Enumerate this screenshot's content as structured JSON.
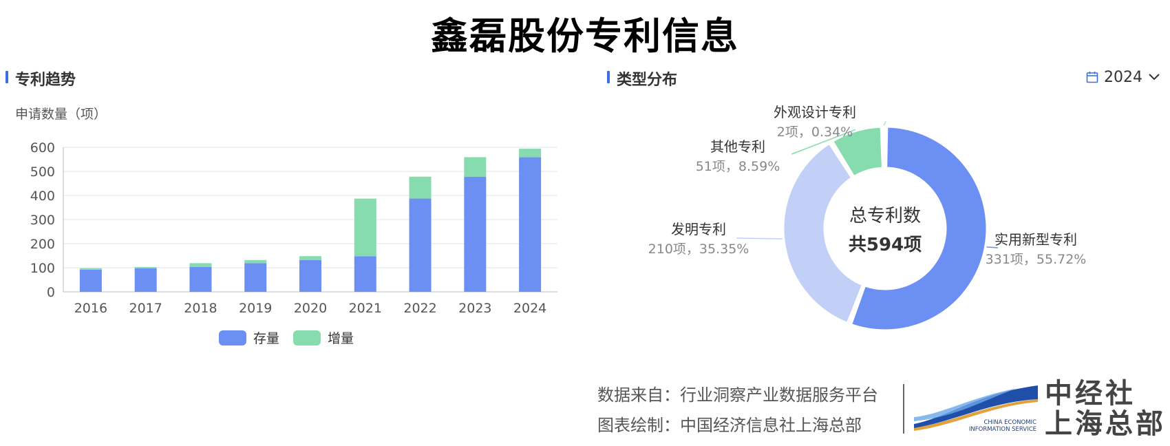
{
  "title": "鑫磊股份专利信息",
  "left_section": {
    "title": "专利趋势"
  },
  "right_section": {
    "title": "类型分布",
    "year_selected": "2024"
  },
  "colors": {
    "stock": "#6b8ff2",
    "increment": "#86dcae",
    "pie": [
      "#6b8ff2",
      "#c2d0f8",
      "#86dcae",
      "#a9e8c8"
    ]
  },
  "chart_data": [
    {
      "type": "bar",
      "stacked": true,
      "ylabel": "申请数量（项）",
      "ylim": [
        0,
        600
      ],
      "yticks": [
        0,
        100,
        200,
        300,
        400,
        500,
        600
      ],
      "categories": [
        "2016",
        "2017",
        "2018",
        "2019",
        "2020",
        "2021",
        "2022",
        "2023",
        "2024"
      ],
      "series": [
        {
          "name": "存量",
          "values": [
            92,
            98,
            103,
            119,
            132,
            148,
            387,
            478,
            559
          ]
        },
        {
          "name": "增量",
          "values": [
            6,
            5,
            16,
            13,
            16,
            239,
            91,
            81,
            35
          ]
        }
      ],
      "legend": "bottom",
      "grid": true
    },
    {
      "type": "pie",
      "donut": true,
      "center_title": "总专利数",
      "center_value": "共594项",
      "slices": [
        {
          "name": "实用新型专利",
          "count": 331,
          "percent": 55.72,
          "label": "331项，55.72%"
        },
        {
          "name": "发明专利",
          "count": 210,
          "percent": 35.35,
          "label": "210项，35.35%"
        },
        {
          "name": "其他专利",
          "count": 51,
          "percent": 8.59,
          "label": "51项，8.59%"
        },
        {
          "name": "外观设计专利",
          "count": 2,
          "percent": 0.34,
          "label": "2项，0.34%"
        }
      ]
    }
  ],
  "footer": {
    "source": "数据来自：行业洞察产业数据服务平台",
    "drawn_by": "图表绘制：中国经济信息社上海总部",
    "logo_en_1": "CHINA ECONOMIC",
    "logo_en_2": "INFORMATION SERVICE",
    "logo_cn_1": "中经社",
    "logo_cn_2": "上海总部"
  }
}
